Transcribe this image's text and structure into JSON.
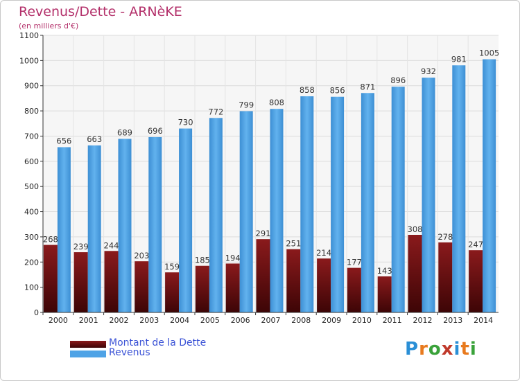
{
  "title": "Revenus/Dette - ARNèKE",
  "subtitle": "(en milliers d'€)",
  "legend": [
    {
      "label": "Montant de la Dette",
      "color": "#6b0e10"
    },
    {
      "label": "Revenus",
      "color": "#4fa3e6"
    }
  ],
  "logo": {
    "text": "Proxiti",
    "colors": [
      "#2a8fd6",
      "#e87a1e",
      "#3aa23a",
      "#c0392b",
      "#2a8fd6",
      "#e87a1e",
      "#3aa23a"
    ]
  },
  "chart_data": {
    "type": "bar",
    "title": "Revenus/Dette - ARNèKE",
    "subtitle": "(en milliers d'€)",
    "categories": [
      "2000",
      "2001",
      "2002",
      "2003",
      "2004",
      "2005",
      "2006",
      "2007",
      "2008",
      "2009",
      "2010",
      "2011",
      "2012",
      "2013",
      "2014"
    ],
    "series": [
      {
        "name": "Montant de la Dette",
        "color": "#6b0e10",
        "values": [
          268,
          239,
          244,
          203,
          159,
          185,
          194,
          291,
          251,
          214,
          177,
          143,
          308,
          278,
          247
        ]
      },
      {
        "name": "Revenus",
        "color": "#4fa3e6",
        "values": [
          656,
          663,
          689,
          696,
          730,
          772,
          799,
          808,
          858,
          856,
          871,
          896,
          932,
          981,
          1005
        ]
      }
    ],
    "ylim": [
      0,
      1100
    ],
    "yticks": [
      0,
      100,
      200,
      300,
      400,
      500,
      600,
      700,
      800,
      900,
      1000,
      1100
    ],
    "grid": true,
    "legend_position": "bottom-left"
  }
}
